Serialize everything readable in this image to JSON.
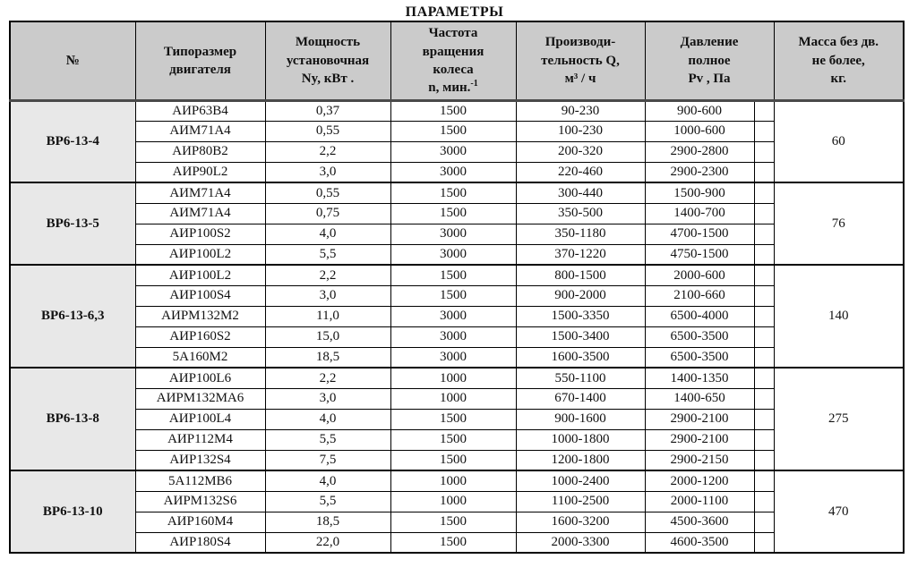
{
  "title": "ПАРАМЕТРЫ",
  "colors": {
    "header_bg": "#cbcbcb",
    "group_bg": "#e8e8e8",
    "border": "#000000"
  },
  "table": {
    "headers": {
      "num": "№",
      "motor": [
        "Типоразмер",
        "двигателя"
      ],
      "power": [
        "Мощность",
        "установочная",
        "Ny, кВт ."
      ],
      "speed": {
        "lines": [
          "Частота",
          "вращения",
          "колеса"
        ],
        "unit_base": "n, мин.",
        "unit_sup": "-1"
      },
      "capacity": [
        "Производи-",
        "тельность Q,",
        "м³ / ч"
      ],
      "pressure": [
        "Давление",
        "полное",
        "Pv , Па"
      ],
      "mass": [
        "Масса без дв.",
        "не более,",
        "кг."
      ]
    },
    "groups": [
      {
        "name": "ВР6-13-4",
        "mass": "60",
        "rows": [
          [
            "АИР63В4",
            "0,37",
            "1500",
            "90-230",
            "900-600"
          ],
          [
            "АИМ71А4",
            "0,55",
            "1500",
            "100-230",
            "1000-600"
          ],
          [
            "АИР80В2",
            "2,2",
            "3000",
            "200-320",
            "2900-2800"
          ],
          [
            "АИР90L2",
            "3,0",
            "3000",
            "220-460",
            "2900-2300"
          ]
        ]
      },
      {
        "name": "ВР6-13-5",
        "mass": "76",
        "rows": [
          [
            "АИМ71А4",
            "0,55",
            "1500",
            "300-440",
            "1500-900"
          ],
          [
            "АИМ71А4",
            "0,75",
            "1500",
            "350-500",
            "1400-700"
          ],
          [
            "АИР100S2",
            "4,0",
            "3000",
            "350-1180",
            "4700-1500"
          ],
          [
            "АИР100L2",
            "5,5",
            "3000",
            "370-1220",
            "4750-1500"
          ]
        ]
      },
      {
        "name": "ВР6-13-6,3",
        "mass": "140",
        "rows": [
          [
            "АИР100L2",
            "2,2",
            "1500",
            "800-1500",
            "2000-600"
          ],
          [
            "АИР100S4",
            "3,0",
            "1500",
            "900-2000",
            "2100-660"
          ],
          [
            "АИРМ132М2",
            "11,0",
            "3000",
            "1500-3350",
            "6500-4000"
          ],
          [
            "АИР160S2",
            "15,0",
            "3000",
            "1500-3400",
            "6500-3500"
          ],
          [
            "5А160М2",
            "18,5",
            "3000",
            "1600-3500",
            "6500-3500"
          ]
        ]
      },
      {
        "name": "ВР6-13-8",
        "mass": "275",
        "rows": [
          [
            "АИР100L6",
            "2,2",
            "1000",
            "550-1100",
            "1400-1350"
          ],
          [
            "АИРМ132МА6",
            "3,0",
            "1000",
            "670-1400",
            "1400-650"
          ],
          [
            "АИР100L4",
            "4,0",
            "1500",
            "900-1600",
            "2900-2100"
          ],
          [
            "АИР112М4",
            "5,5",
            "1500",
            "1000-1800",
            "2900-2100"
          ],
          [
            "АИР132S4",
            "7,5",
            "1500",
            "1200-1800",
            "2900-2150"
          ]
        ]
      },
      {
        "name": "ВР6-13-10",
        "mass": "470",
        "rows": [
          [
            "5А112МВ6",
            "4,0",
            "1000",
            "1000-2400",
            "2000-1200"
          ],
          [
            "АИРМ132S6",
            "5,5",
            "1000",
            "1100-2500",
            "2000-1100"
          ],
          [
            "АИР160М4",
            "18,5",
            "1500",
            "1600-3200",
            "4500-3600"
          ],
          [
            "АИР180S4",
            "22,0",
            "1500",
            "2000-3300",
            "4600-3500"
          ]
        ]
      }
    ]
  }
}
